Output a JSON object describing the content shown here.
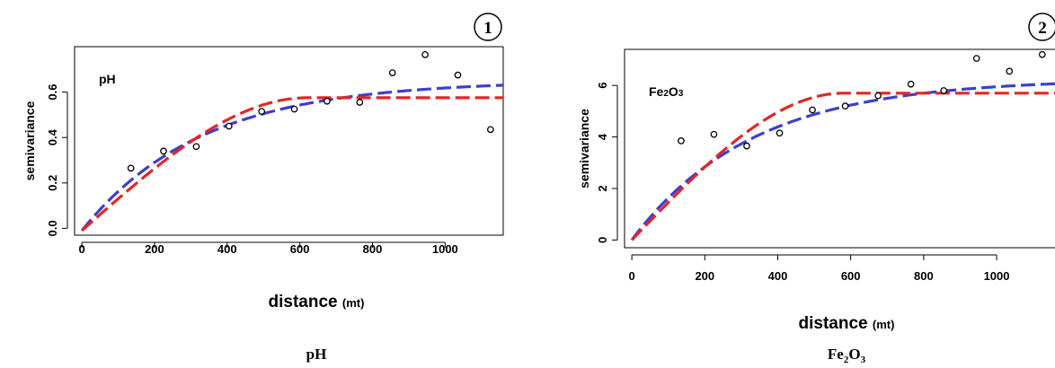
{
  "chart_data": [
    {
      "type": "scatter",
      "badge": "1",
      "panel_label": "pH",
      "caption": "pH",
      "ylabel": "semivariance",
      "xlabel": "distance",
      "xlabel_unit": "(mt)",
      "xlim": [
        -20,
        1160
      ],
      "ylim": [
        -0.03,
        0.8
      ],
      "xticks": [
        0,
        200,
        400,
        600,
        800,
        1000
      ],
      "yticks": [
        0.0,
        0.2,
        0.4,
        0.6
      ],
      "ytick_labels": [
        "0.0",
        "0.2",
        "0.4",
        "0.6"
      ],
      "points": {
        "x": [
          135,
          225,
          315,
          405,
          495,
          585,
          675,
          765,
          855,
          945,
          1035,
          1125
        ],
        "y": [
          0.265,
          0.34,
          0.36,
          0.45,
          0.515,
          0.525,
          0.56,
          0.555,
          0.685,
          0.765,
          0.675,
          0.435
        ]
      },
      "series": [
        {
          "style": "dashed",
          "color": "#3b3fd1",
          "model": "exponential",
          "nugget": -0.01,
          "sill": 0.65,
          "range": 330
        },
        {
          "style": "dashed",
          "color": "#e32626",
          "model": "spherical",
          "nugget": -0.01,
          "sill": 0.575,
          "range": 620
        }
      ]
    },
    {
      "type": "scatter",
      "badge": "2",
      "panel_label": "Fe2O3",
      "caption_main": "Fe",
      "caption_sub1": "2",
      "caption_mid": "O",
      "caption_sub2": "3",
      "ylabel": "semivariance",
      "xlabel": "distance",
      "xlabel_unit": "(mt)",
      "xlim": [
        -20,
        1160
      ],
      "ylim": [
        -0.3,
        7.4
      ],
      "xticks": [
        0,
        200,
        400,
        600,
        800,
        1000
      ],
      "yticks": [
        0,
        2,
        4,
        6
      ],
      "ytick_labels": [
        "0",
        "2",
        "4",
        "6"
      ],
      "points": {
        "x": [
          135,
          225,
          315,
          405,
          495,
          585,
          675,
          765,
          855,
          945,
          1035,
          1125
        ],
        "y": [
          3.85,
          4.1,
          3.65,
          4.15,
          5.05,
          5.2,
          5.6,
          6.05,
          5.8,
          7.05,
          6.55,
          7.2
        ]
      },
      "series": [
        {
          "style": "dashed",
          "color": "#3b3fd1",
          "model": "exponential",
          "nugget": 0.0,
          "sill": 6.25,
          "range": 330
        },
        {
          "style": "dashed",
          "color": "#e32626",
          "model": "spherical",
          "nugget": 0.0,
          "sill": 5.7,
          "range": 580
        }
      ]
    }
  ]
}
